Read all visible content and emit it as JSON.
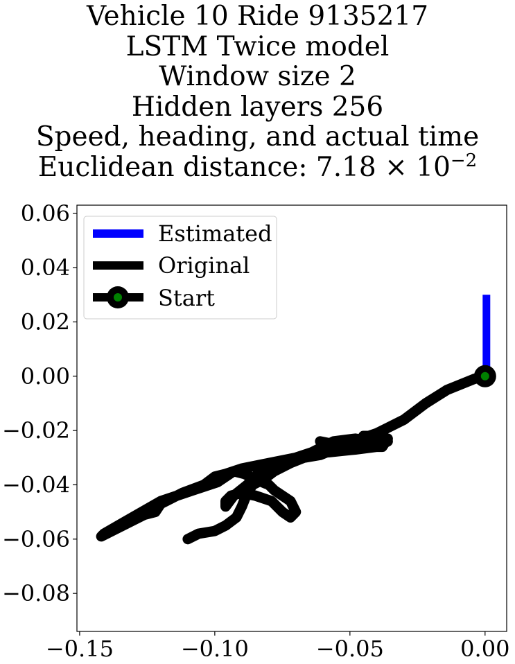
{
  "chart_data": {
    "type": "line",
    "title_lines": [
      "Vehicle 10 Ride 9135217",
      "LSTM Twice model",
      "Window size 2",
      "Hidden layers 256",
      "Speed, heading, and actual time"
    ],
    "distance_label": "Euclidean distance: 7.18",
    "distance_mult": "×",
    "distance_base": "10",
    "distance_exp": "−2",
    "xlim": [
      -0.151,
      0.008
    ],
    "ylim": [
      -0.094,
      0.063
    ],
    "x_ticks": [
      -0.15,
      -0.1,
      -0.05,
      0.0
    ],
    "x_tick_labels": [
      "−0.15",
      "−0.10",
      "−0.05",
      "0.00"
    ],
    "y_ticks": [
      0.06,
      0.04,
      0.02,
      0.0,
      -0.02,
      -0.04,
      -0.06,
      -0.08
    ],
    "y_tick_labels": [
      "0.06",
      "0.04",
      "0.02",
      "0.00",
      "−0.02",
      "−0.04",
      "−0.06",
      "−0.08"
    ],
    "grid": false,
    "legend_position": "upper-left",
    "legend": [
      "Estimated",
      "Original",
      "Start"
    ],
    "series": [
      {
        "name": "Estimated",
        "color": "#0000ff",
        "x": [
          0.0005,
          0.0005
        ],
        "y": [
          0.0,
          0.03
        ]
      },
      {
        "name": "Original",
        "color": "#000000",
        "x": [
          0.0,
          -0.004,
          -0.014,
          -0.022,
          -0.026,
          -0.03,
          -0.036,
          -0.04,
          -0.043,
          -0.045,
          -0.038,
          -0.036,
          -0.04,
          -0.048,
          -0.056,
          -0.061,
          -0.058,
          -0.048,
          -0.044,
          -0.042,
          -0.048,
          -0.056,
          -0.06,
          -0.064,
          -0.07,
          -0.08,
          -0.09,
          -0.096,
          -0.1,
          -0.104,
          -0.112,
          -0.12,
          -0.122,
          -0.126,
          -0.132,
          -0.138,
          -0.142,
          -0.141,
          -0.134,
          -0.12,
          -0.108,
          -0.099,
          -0.093,
          -0.089,
          -0.085,
          -0.08,
          -0.078,
          -0.072,
          -0.07,
          -0.072,
          -0.075,
          -0.079,
          -0.085,
          -0.09,
          -0.094,
          -0.096,
          -0.096,
          -0.093,
          -0.088,
          -0.084,
          -0.079,
          -0.073,
          -0.069,
          -0.062,
          -0.054,
          -0.046,
          -0.042,
          -0.036,
          -0.038,
          -0.042,
          -0.049,
          -0.056,
          -0.061,
          -0.067,
          -0.072,
          -0.078,
          -0.082,
          -0.086,
          -0.088,
          -0.09,
          -0.092,
          -0.096,
          -0.1,
          -0.106,
          -0.11
        ],
        "y": [
          0.0,
          -0.001,
          -0.005,
          -0.01,
          -0.013,
          -0.016,
          -0.019,
          -0.021,
          -0.022,
          -0.022,
          -0.022,
          -0.024,
          -0.026,
          -0.027,
          -0.025,
          -0.024,
          -0.028,
          -0.027,
          -0.026,
          -0.024,
          -0.023,
          -0.024,
          -0.026,
          -0.028,
          -0.03,
          -0.032,
          -0.034,
          -0.036,
          -0.037,
          -0.04,
          -0.043,
          -0.047,
          -0.05,
          -0.051,
          -0.054,
          -0.057,
          -0.059,
          -0.058,
          -0.054,
          -0.046,
          -0.042,
          -0.039,
          -0.035,
          -0.036,
          -0.038,
          -0.04,
          -0.042,
          -0.046,
          -0.05,
          -0.052,
          -0.05,
          -0.046,
          -0.044,
          -0.043,
          -0.044,
          -0.046,
          -0.048,
          -0.044,
          -0.04,
          -0.036,
          -0.033,
          -0.032,
          -0.03,
          -0.028,
          -0.026,
          -0.024,
          -0.022,
          -0.023,
          -0.026,
          -0.026,
          -0.025,
          -0.027,
          -0.029,
          -0.03,
          -0.032,
          -0.035,
          -0.038,
          -0.04,
          -0.043,
          -0.048,
          -0.052,
          -0.055,
          -0.057,
          -0.058,
          -0.06
        ]
      }
    ],
    "start": {
      "x": 0.0,
      "y": 0.0,
      "marker_color": "#008000",
      "ring_color": "#000000"
    }
  }
}
